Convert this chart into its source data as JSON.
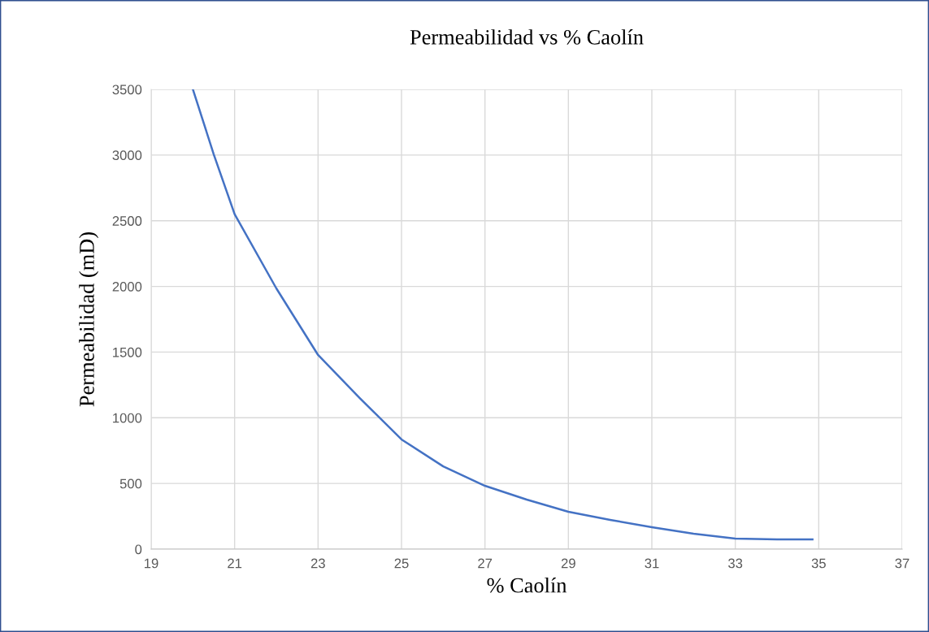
{
  "chart_data": {
    "type": "line",
    "title": "Permeabilidad vs % Caolín",
    "xlabel": "% Caolín",
    "ylabel": "Permeabilidad (mD)",
    "x": [
      20,
      20.5,
      21,
      22,
      23,
      24,
      25,
      26,
      27,
      28,
      29,
      30,
      31,
      32,
      33,
      34,
      34.85
    ],
    "series": [
      {
        "color": "#4472c4",
        "values": [
          3500,
          3005,
          2550,
          1985,
          1478,
          1150,
          835,
          630,
          482,
          377,
          284,
          223,
          167,
          117,
          80,
          74,
          74
        ]
      }
    ],
    "xlim": [
      19,
      37
    ],
    "xticks": [
      19,
      21,
      23,
      25,
      27,
      29,
      31,
      33,
      35,
      37
    ],
    "ylim": [
      0,
      3500
    ],
    "yticks": [
      0,
      500,
      1000,
      1500,
      2000,
      2500,
      3000,
      3500
    ],
    "grid": true,
    "marker": "none",
    "line_style": "solid"
  }
}
